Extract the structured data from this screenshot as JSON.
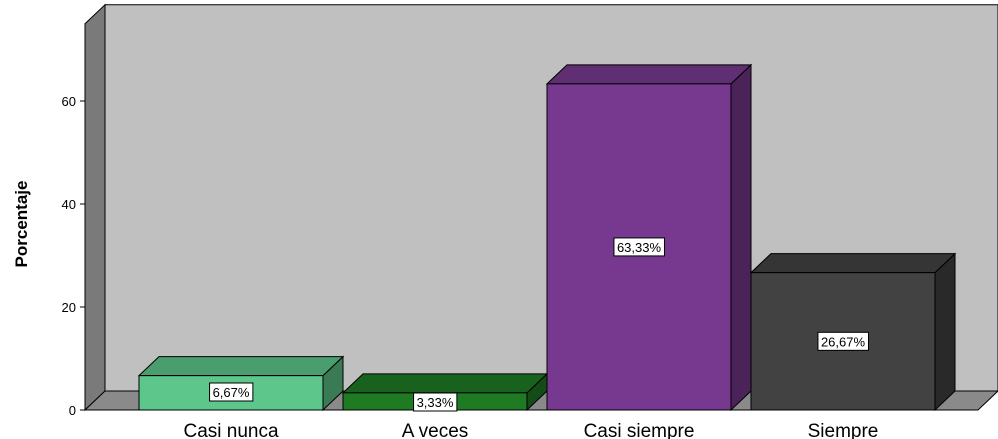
{
  "chart_data": {
    "type": "bar",
    "style": "3d",
    "categories": [
      "Casi nunca",
      "A veces",
      "Casi siempre",
      "Siempre"
    ],
    "values": [
      6.67,
      3.33,
      63.33,
      26.67
    ],
    "data_labels": [
      "6,67%",
      "3,33%",
      "63,33%",
      "26,67%"
    ],
    "ylabel": "Porcentaje",
    "ylim": [
      0,
      75
    ],
    "yticks": [
      0,
      20,
      40,
      60
    ],
    "grid": false,
    "colors": {
      "background": "#c0c0c0",
      "left_wall": "#7a7a7a",
      "floor": "#8a8a8a",
      "bars": [
        "#5dc68a",
        "#1f7a24",
        "#773990",
        "#424242"
      ]
    }
  }
}
